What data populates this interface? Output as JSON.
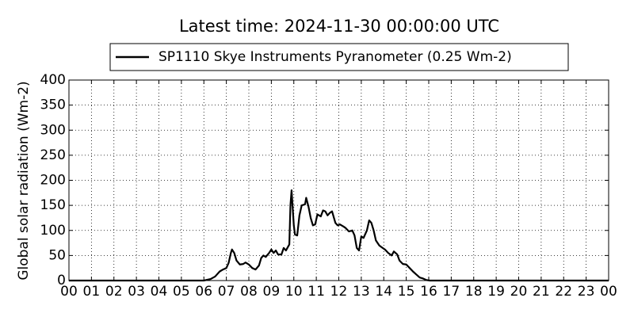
{
  "chart_data": {
    "type": "line",
    "title": "Latest time: 2024-11-30 00:00:00 UTC",
    "y_label": "Global solar radiation (Wm-2)",
    "legend": "top",
    "grid": true,
    "x": [
      0,
      6.0,
      6.3,
      6.5,
      6.7,
      6.85,
      7.0,
      7.1,
      7.2,
      7.25,
      7.35,
      7.45,
      7.6,
      7.75,
      7.85,
      8.0,
      8.15,
      8.3,
      8.45,
      8.55,
      8.65,
      8.75,
      8.9,
      9.0,
      9.1,
      9.2,
      9.3,
      9.45,
      9.55,
      9.65,
      9.8,
      9.85,
      9.9,
      10.0,
      10.05,
      10.15,
      10.25,
      10.35,
      10.5,
      10.55,
      10.65,
      10.75,
      10.85,
      10.95,
      11.05,
      11.2,
      11.3,
      11.4,
      11.5,
      11.6,
      11.7,
      11.85,
      11.95,
      12.05,
      12.2,
      12.3,
      12.45,
      12.6,
      12.7,
      12.8,
      12.9,
      13.0,
      13.1,
      13.25,
      13.35,
      13.45,
      13.55,
      13.65,
      13.8,
      13.95,
      14.05,
      14.2,
      14.35,
      14.45,
      14.6,
      14.7,
      14.85,
      15.0,
      15.15,
      15.3,
      15.45,
      15.6,
      15.75,
      15.9,
      16.05,
      24
    ],
    "series": [
      {
        "name": "SP1110 Skye Instruments Pyranometer (0.25 Wm-2)",
        "color": "#000000",
        "values": [
          0,
          0,
          3,
          8,
          18,
          22,
          25,
          35,
          55,
          62,
          55,
          40,
          32,
          33,
          36,
          32,
          25,
          22,
          30,
          45,
          50,
          47,
          55,
          62,
          55,
          60,
          52,
          52,
          65,
          60,
          72,
          150,
          180,
          110,
          92,
          90,
          130,
          150,
          152,
          165,
          148,
          125,
          110,
          112,
          132,
          128,
          140,
          138,
          130,
          135,
          138,
          115,
          110,
          112,
          108,
          105,
          98,
          100,
          90,
          65,
          60,
          88,
          85,
          100,
          120,
          115,
          100,
          80,
          70,
          65,
          62,
          55,
          50,
          58,
          52,
          40,
          33,
          32,
          25,
          18,
          12,
          6,
          4,
          1,
          0,
          0
        ]
      }
    ],
    "xlim": [
      0,
      24
    ],
    "xticks": [
      {
        "value": 0,
        "label": "00"
      },
      {
        "value": 1,
        "label": "01"
      },
      {
        "value": 2,
        "label": "02"
      },
      {
        "value": 3,
        "label": "03"
      },
      {
        "value": 4,
        "label": "04"
      },
      {
        "value": 5,
        "label": "05"
      },
      {
        "value": 6,
        "label": "06"
      },
      {
        "value": 7,
        "label": "07"
      },
      {
        "value": 8,
        "label": "08"
      },
      {
        "value": 9,
        "label": "09"
      },
      {
        "value": 10,
        "label": "10"
      },
      {
        "value": 11,
        "label": "11"
      },
      {
        "value": 12,
        "label": "12"
      },
      {
        "value": 13,
        "label": "13"
      },
      {
        "value": 14,
        "label": "14"
      },
      {
        "value": 15,
        "label": "15"
      },
      {
        "value": 16,
        "label": "16"
      },
      {
        "value": 17,
        "label": "17"
      },
      {
        "value": 18,
        "label": "18"
      },
      {
        "value": 19,
        "label": "19"
      },
      {
        "value": 20,
        "label": "20"
      },
      {
        "value": 21,
        "label": "21"
      },
      {
        "value": 22,
        "label": "22"
      },
      {
        "value": 23,
        "label": "23"
      },
      {
        "value": 24,
        "label": "00"
      }
    ],
    "ylim": [
      0,
      400
    ],
    "yticks": [
      0,
      50,
      100,
      150,
      200,
      250,
      300,
      350,
      400
    ]
  }
}
